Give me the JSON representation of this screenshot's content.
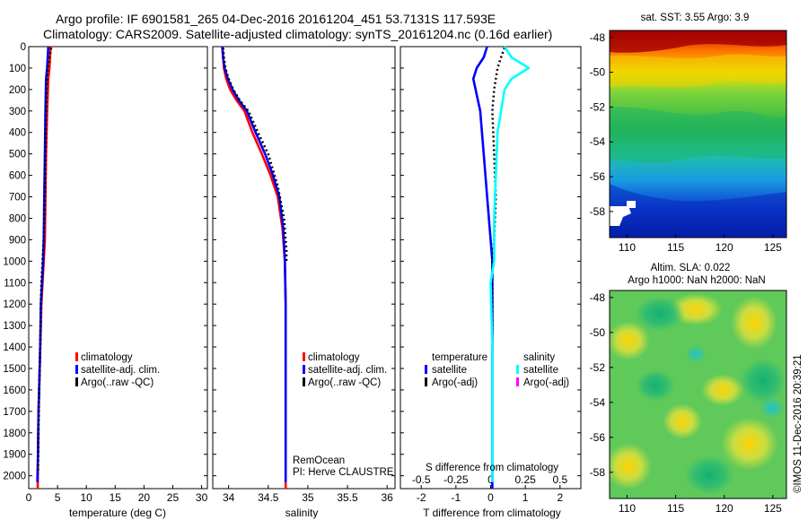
{
  "header": {
    "line1": "Argo profile: IF 6901581_265 04-Dec-2016 20161204_451 53.7131S 117.593E",
    "line2": "Climatology: CARS2009. Satellite-adjusted climatology: synTS_20161204.nc (0.16d earlier)"
  },
  "colors": {
    "climatology": "#ff0000",
    "satellite": "#0000ff",
    "argo": "#000000",
    "salinity_satellite": "#00ffff",
    "salinity_argo": "#ff00ff"
  },
  "chart_data": [
    {
      "id": "temperature",
      "type": "line",
      "xlabel": "temperature (deg C)",
      "xlim": [
        0,
        31
      ],
      "xticks": [
        0,
        5,
        10,
        15,
        20,
        25,
        30
      ],
      "ylim": [
        0,
        2060
      ],
      "yticks": [
        0,
        100,
        200,
        300,
        400,
        500,
        600,
        700,
        800,
        900,
        1000,
        1100,
        1200,
        1300,
        1400,
        1500,
        1600,
        1700,
        1800,
        1900,
        2000
      ],
      "y_reversed": true,
      "legend": [
        "climatology",
        "satellite-adj. clim.",
        "Argo(..raw -QC)"
      ],
      "series": [
        {
          "name": "climatology",
          "key": "climatology",
          "x": [
            3.8,
            3.6,
            3.4,
            3.2,
            3.0,
            2.9,
            2.8,
            2.6,
            2.4,
            2.2,
            2.1,
            2.0,
            1.9,
            1.8,
            1.7,
            1.6,
            1.55
          ],
          "y": [
            0,
            100,
            150,
            300,
            500,
            700,
            900,
            1000,
            1100,
            1200,
            1300,
            1400,
            1500,
            1600,
            1700,
            1900,
            2060
          ]
        },
        {
          "name": "satellite-adj. clim.",
          "key": "satellite",
          "x": [
            3.4,
            3.2,
            3.0,
            2.9,
            2.8,
            2.7,
            2.6,
            2.5,
            2.3,
            2.1,
            2.0,
            1.9,
            1.8,
            1.7,
            1.6,
            1.5
          ],
          "y": [
            0,
            100,
            150,
            300,
            500,
            700,
            900,
            1000,
            1100,
            1200,
            1400,
            1500,
            1600,
            1700,
            1900,
            2030
          ]
        },
        {
          "name": "Argo(..raw -QC)",
          "key": "argo",
          "x": [
            3.9,
            3.6,
            3.3,
            3.1,
            3.0,
            2.9,
            2.8,
            2.6,
            2.4,
            2.2,
            2.1,
            2.0,
            1.9,
            1.8,
            1.7,
            1.6
          ],
          "y": [
            5,
            50,
            100,
            200,
            300,
            500,
            700,
            900,
            1000,
            1100,
            1200,
            1400,
            1500,
            1600,
            1800,
            1990
          ]
        }
      ]
    },
    {
      "id": "salinity",
      "type": "line",
      "xlabel": "salinity",
      "xlim": [
        33.8,
        36.1
      ],
      "xticks": [
        34,
        34.5,
        35,
        35.5,
        36
      ],
      "ylim": [
        0,
        2060
      ],
      "y_reversed": true,
      "legend": [
        "climatology",
        "satellite-adj. clim.",
        "Argo(..raw -QC)"
      ],
      "annotations": [
        "RemOcean",
        "PI: Herve CLAUSTRE"
      ],
      "series": [
        {
          "name": "climatology",
          "key": "climatology",
          "x": [
            33.92,
            33.93,
            33.94,
            33.97,
            34.02,
            34.1,
            34.2,
            34.3,
            34.42,
            34.53,
            34.62,
            34.68,
            34.71,
            34.72,
            34.72,
            34.72
          ],
          "y": [
            0,
            50,
            100,
            150,
            200,
            250,
            300,
            400,
            500,
            600,
            700,
            850,
            1000,
            1200,
            1600,
            2060
          ]
        },
        {
          "name": "satellite-adj. clim.",
          "key": "satellite",
          "x": [
            33.92,
            33.93,
            33.95,
            33.99,
            34.05,
            34.13,
            34.23,
            34.34,
            34.46,
            34.56,
            34.64,
            34.69,
            34.71,
            34.72,
            34.72,
            34.72
          ],
          "y": [
            0,
            50,
            100,
            150,
            200,
            250,
            300,
            400,
            500,
            600,
            700,
            850,
            1000,
            1200,
            1600,
            2030
          ]
        },
        {
          "name": "Argo(..raw -QC)",
          "key": "argo",
          "x": [
            33.93,
            33.94,
            33.96,
            34.0,
            34.06,
            34.14,
            34.25,
            34.37,
            34.5,
            34.62,
            34.7,
            34.73,
            34.73
          ],
          "y": [
            5,
            50,
            100,
            150,
            200,
            250,
            300,
            400,
            500,
            650,
            800,
            950,
            1000
          ]
        }
      ]
    },
    {
      "id": "difference",
      "type": "line",
      "xlabel": "T difference from climatology",
      "xlabel_top": "S difference from climatology",
      "xlim": [
        -2.6,
        2.6
      ],
      "xticks": [
        -2,
        -1,
        0,
        1,
        2
      ],
      "xticklabels_top": [
        "-0.5",
        "-0.25",
        "0",
        "0.25",
        "0.5"
      ],
      "ylim": [
        0,
        2060
      ],
      "y_reversed": true,
      "legend_titles": [
        "temperature",
        "salinity"
      ],
      "legend": [
        "satellite",
        "Argo(-adj)",
        "satellite",
        "Argo(-adj)"
      ],
      "series": [
        {
          "name": "satellite",
          "key": "satellite",
          "group": "temperature",
          "x": [
            -0.1,
            -0.2,
            -0.4,
            -0.5,
            -0.3,
            -0.2,
            -0.1,
            0,
            0.05,
            0.05,
            0.05,
            0.05
          ],
          "y": [
            0,
            50,
            100,
            150,
            300,
            500,
            700,
            900,
            1000,
            1200,
            1600,
            2060
          ]
        },
        {
          "name": "Argo(-adj)",
          "key": "argo",
          "group": "temperature",
          "x": [
            0.4,
            0.3,
            0.2,
            0.1,
            0.05,
            0.1,
            0.15,
            0.1,
            0.05,
            0.05,
            0.05
          ],
          "y": [
            5,
            50,
            100,
            200,
            300,
            500,
            700,
            900,
            1000,
            1200,
            1400
          ]
        },
        {
          "name": "satellite",
          "key": "salinity_satellite",
          "group": "salinity",
          "x": [
            0.4,
            0.6,
            1.1,
            0.6,
            0.4,
            0.2,
            0.15,
            0.1,
            0.1,
            0.0,
            0.05,
            0.05
          ],
          "y": [
            0,
            50,
            100,
            150,
            200,
            400,
            600,
            800,
            1000,
            1100,
            1400,
            2030
          ]
        }
      ]
    },
    {
      "id": "sst_map",
      "type": "heatmap",
      "title": "sat. SST: 3.55 Argo: 3.9",
      "xticks": [
        110,
        115,
        120,
        125
      ],
      "yticks": [
        -48,
        -50,
        -52,
        -54,
        -56,
        -58
      ],
      "xlim": [
        108.2,
        126.4
      ],
      "ylim": [
        -59.5,
        -47.6
      ]
    },
    {
      "id": "sla_map",
      "type": "heatmap",
      "title": "Altim. SLA: 0.022",
      "subtitle": "Argo h1000: NaN h2000: NaN",
      "xticks": [
        110,
        115,
        120,
        125
      ],
      "yticks": [
        -48,
        -50,
        -52,
        -54,
        -56,
        -58
      ],
      "xlim": [
        108.2,
        126.4
      ],
      "ylim": [
        -59.5,
        -47.6
      ]
    }
  ],
  "credit": "©IMOS 11-Dec-2016 20:39:21"
}
